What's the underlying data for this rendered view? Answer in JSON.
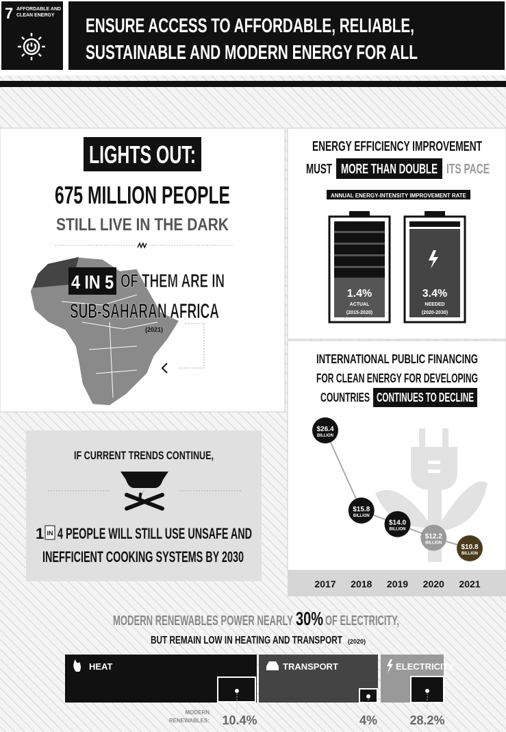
{
  "header": {
    "goal_number": "7",
    "goal_name": [
      "AFFORDABLE AND",
      "CLEAN ENERGY"
    ],
    "title": [
      "ENSURE ACCESS TO AFFORDABLE, RELIABLE,",
      "SUSTAINABLE AND MODERN ENERGY FOR ALL"
    ]
  },
  "access": {
    "badge": "LIGHTS OUT:",
    "headline": "675 MILLION PEOPLE",
    "subhead": "STILL LIVE IN THE DARK",
    "share": "4 IN 5",
    "share_text": "OF THEM ARE IN",
    "region": "SUB-SAHARAN AFRICA",
    "year": "(2021)"
  },
  "efficiency": {
    "title": "ENERGY EFFICIENCY IMPROVEMENT",
    "lead": "MUST",
    "highlight": "MORE THAN DOUBLE",
    "tail": "ITS PACE",
    "label": "ANNUAL ENERGY-INTENSITY IMPROVEMENT RATE",
    "batteries": [
      {
        "value": "1.4%",
        "name": "ACTUAL",
        "period": "(2015-2020)"
      },
      {
        "value": "3.4%",
        "name": "NEEDED",
        "period": "(2020-2030)"
      }
    ]
  },
  "financing": {
    "title": [
      "INTERNATIONAL PUBLIC FINANCING",
      "FOR CLEAN ENERGY FOR DEVELOPING",
      "COUNTRIES"
    ],
    "highlight": "CONTINUES TO DECLINE",
    "years": [
      2017,
      2018,
      2019,
      2020,
      2021
    ],
    "values": [
      26.4,
      15.8,
      14.0,
      12.2,
      10.8
    ],
    "value_labels": [
      "$26.4",
      "$15.8",
      "$14.0",
      "$12.2",
      "$10.8"
    ],
    "unit": "BILLION",
    "colors": [
      "#111111",
      "#111111",
      "#111111",
      "#9a9a9a",
      "#4a3b1e"
    ]
  },
  "cooking": {
    "intro": "IF CURRENT TRENDS CONTINUE,",
    "lead": "1",
    "boxed": "IN",
    "line1": "4 PEOPLE WILL STILL USE UNSAFE AND",
    "line2": "INEFFICIENT COOKING SYSTEMS BY 2030"
  },
  "renewables": {
    "title_start": "MODERN RENEWABLES POWER NEARLY",
    "title_highlight": "30%",
    "title_end": "OF ELECTRICITY,",
    "subtitle": "BUT REMAIN LOW IN HEATING AND TRANSPORT",
    "year": "(2020)",
    "row_label": [
      "MODERN",
      "RENEWABLES:"
    ],
    "sectors": [
      {
        "name": "HEAT",
        "share": "10.4%"
      },
      {
        "name": "TRANSPORT",
        "share": "4%"
      },
      {
        "name": "ELECTRICITY",
        "share": "28.2%"
      }
    ]
  }
}
